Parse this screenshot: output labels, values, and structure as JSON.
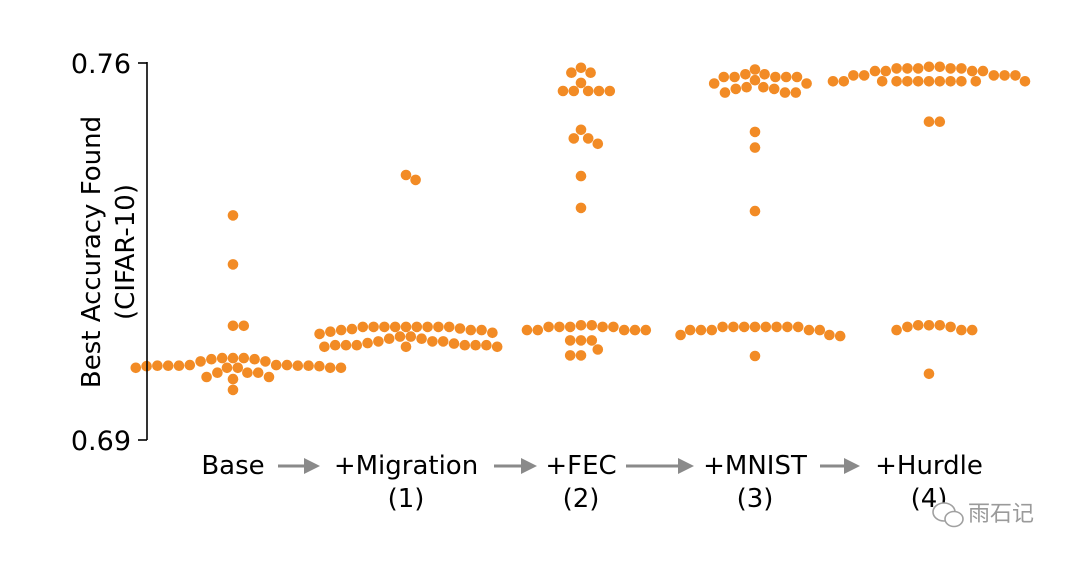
{
  "chart_data": {
    "type": "scatter",
    "ylabel": [
      "Best Accuracy Found",
      "(CIFAR-10)"
    ],
    "ylim": [
      0.69,
      0.76
    ],
    "yticks": [
      "0.76",
      "0.69"
    ],
    "categories": [
      {
        "line1": "Base",
        "line2": ""
      },
      {
        "line1": "+Migration",
        "line2": "(1)"
      },
      {
        "line1": "+FEC",
        "line2": "(2)"
      },
      {
        "line1": "+MNIST",
        "line2": "(3)"
      },
      {
        "line1": "+Hurdle",
        "line2": "(4)"
      }
    ],
    "series": [
      {
        "values": [
          0.7317,
          0.7226,
          0.7112,
          0.7112,
          0.7052,
          0.7052,
          0.7052,
          0.705,
          0.705,
          0.7046,
          0.7046,
          0.7039,
          0.7039,
          0.7039,
          0.7038,
          0.7038,
          0.7038,
          0.7038,
          0.7038,
          0.7037,
          0.7037,
          0.7034,
          0.7034,
          0.7034,
          0.7034,
          0.7034,
          0.7025,
          0.7025,
          0.7025,
          0.7017,
          0.7017,
          0.7013,
          0.6993
        ]
      },
      {
        "values": [
          0.7392,
          0.7383,
          0.711,
          0.711,
          0.711,
          0.711,
          0.711,
          0.711,
          0.711,
          0.711,
          0.711,
          0.7107,
          0.7106,
          0.7104,
          0.7104,
          0.7104,
          0.7101,
          0.7099,
          0.7097,
          0.7092,
          0.7092,
          0.7088,
          0.7088,
          0.7083,
          0.7083,
          0.7083,
          0.708,
          0.7079,
          0.7076,
          0.7076,
          0.7076,
          0.7076,
          0.7076,
          0.7076,
          0.7073,
          0.7073,
          0.7073
        ]
      },
      {
        "values": [
          0.7591,
          0.7582,
          0.7582,
          0.7563,
          0.7548,
          0.7548,
          0.7548,
          0.7548,
          0.7548,
          0.7476,
          0.746,
          0.746,
          0.745,
          0.739,
          0.7331,
          0.7113,
          0.7113,
          0.711,
          0.711,
          0.711,
          0.711,
          0.711,
          0.7104,
          0.7104,
          0.7104,
          0.7104,
          0.7104,
          0.7085,
          0.7085,
          0.7085,
          0.7068,
          0.7057,
          0.7057
        ]
      },
      {
        "values": [
          0.7588,
          0.7579,
          0.7579,
          0.7574,
          0.7574,
          0.7574,
          0.7574,
          0.7574,
          0.7568,
          0.7562,
          0.7562,
          0.7555,
          0.7555,
          0.7552,
          0.7552,
          0.7545,
          0.7545,
          0.7545,
          0.7472,
          0.7443,
          0.7325,
          0.711,
          0.711,
          0.711,
          0.711,
          0.711,
          0.711,
          0.711,
          0.711,
          0.7104,
          0.7104,
          0.7104,
          0.7104,
          0.7104,
          0.7095,
          0.7095,
          0.7093,
          0.7056
        ]
      },
      {
        "values": [
          0.7593,
          0.7593,
          0.759,
          0.759,
          0.759,
          0.759,
          0.759,
          0.7585,
          0.7585,
          0.7585,
          0.7585,
          0.7577,
          0.7577,
          0.7577,
          0.7577,
          0.7577,
          0.7566,
          0.7566,
          0.7566,
          0.7566,
          0.7566,
          0.7566,
          0.7566,
          0.7566,
          0.7566,
          0.7566,
          0.7566,
          0.7566,
          0.7491,
          0.7491,
          0.7113,
          0.7113,
          0.7113,
          0.711,
          0.711,
          0.7104,
          0.7104,
          0.7104,
          0.7023
        ]
      }
    ],
    "marker_color": "#f28b25",
    "arrow_color": "#8a8a8a",
    "axis_color": "#000000",
    "grid": false
  },
  "watermark": {
    "text": "雨石记"
  }
}
